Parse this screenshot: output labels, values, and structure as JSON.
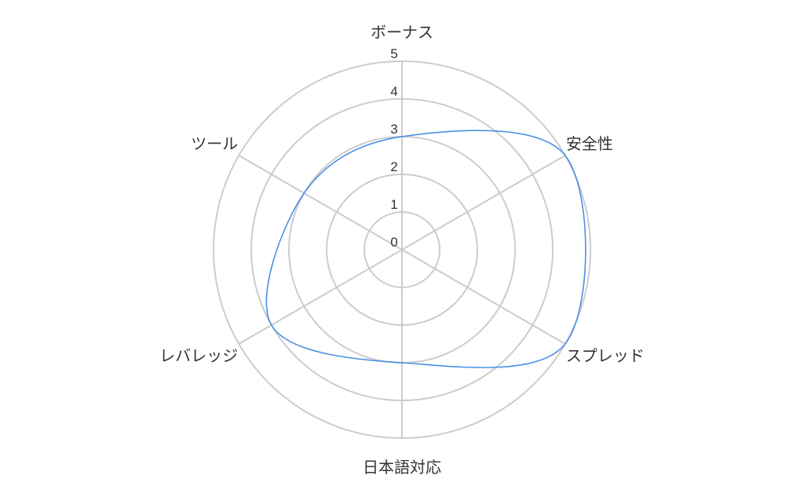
{
  "chart_data": {
    "type": "radar",
    "categories": [
      "ボーナス",
      "安全性",
      "スプレッド",
      "日本語対応",
      "レバレッジ",
      "ツール"
    ],
    "series": [
      {
        "values": [
          3,
          5,
          5,
          3,
          4,
          3
        ]
      }
    ],
    "rlim": [
      0,
      5
    ],
    "ticks": [
      "0",
      "1",
      "2",
      "3",
      "4",
      "5"
    ],
    "grid": true,
    "curved": true,
    "colors": {
      "series": "#4a8fe7",
      "grid": "#cccccc",
      "text": "#333333"
    }
  }
}
